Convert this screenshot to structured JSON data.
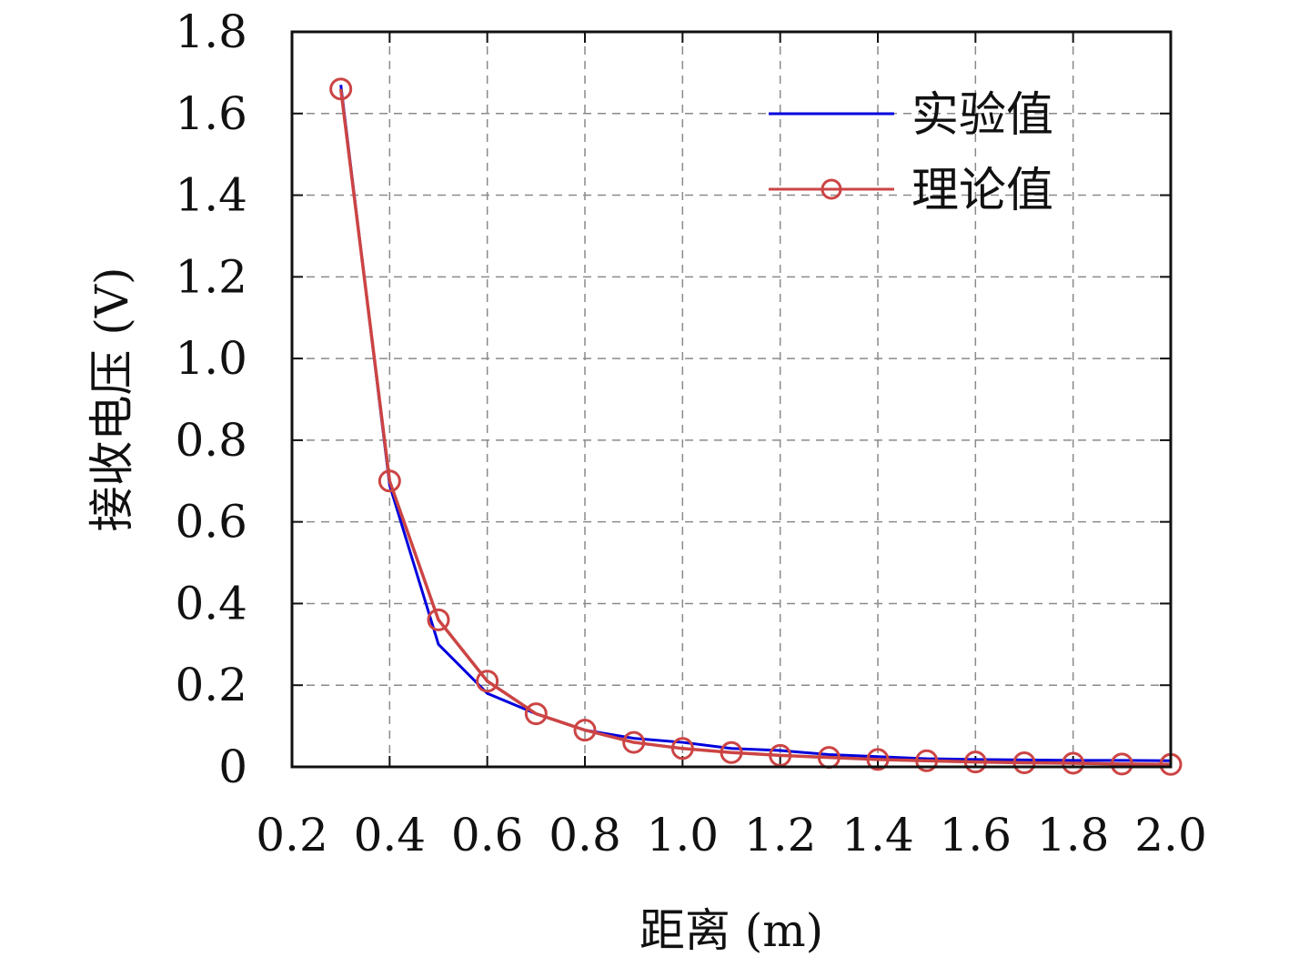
{
  "chart_data": {
    "type": "line",
    "title": "",
    "xlabel": "距离 (m)",
    "ylabel": "接收电压 (V)",
    "xlim": [
      0.2,
      2.0
    ],
    "ylim": [
      0,
      1.8
    ],
    "x_ticks": [
      "0.2",
      "0.4",
      "0.6",
      "0.8",
      "1.0",
      "1.2",
      "1.4",
      "1.6",
      "1.8",
      "2.0"
    ],
    "y_ticks": [
      "0",
      "0.2",
      "0.4",
      "0.6",
      "0.8",
      "1.0",
      "1.2",
      "1.4",
      "1.6",
      "1.8"
    ],
    "grid": true,
    "legend_position": "top-right",
    "x": [
      0.3,
      0.4,
      0.5,
      0.6,
      0.7,
      0.8,
      0.9,
      1.0,
      1.1,
      1.2,
      1.3,
      1.4,
      1.5,
      1.6,
      1.7,
      1.8,
      1.9,
      2.0
    ],
    "series": [
      {
        "name": "实验值",
        "color": "#0000dd",
        "marker": "none",
        "values": [
          1.67,
          0.69,
          0.3,
          0.18,
          0.13,
          0.09,
          0.07,
          0.06,
          0.045,
          0.04,
          0.03,
          0.025,
          0.02,
          0.018,
          0.017,
          0.016,
          0.016,
          0.015
        ]
      },
      {
        "name": "理论值",
        "color": "#cc4444",
        "marker": "open-circle",
        "values": [
          1.66,
          0.7,
          0.36,
          0.21,
          0.13,
          0.09,
          0.06,
          0.045,
          0.035,
          0.028,
          0.023,
          0.018,
          0.015,
          0.012,
          0.01,
          0.009,
          0.007,
          0.006
        ]
      }
    ]
  }
}
